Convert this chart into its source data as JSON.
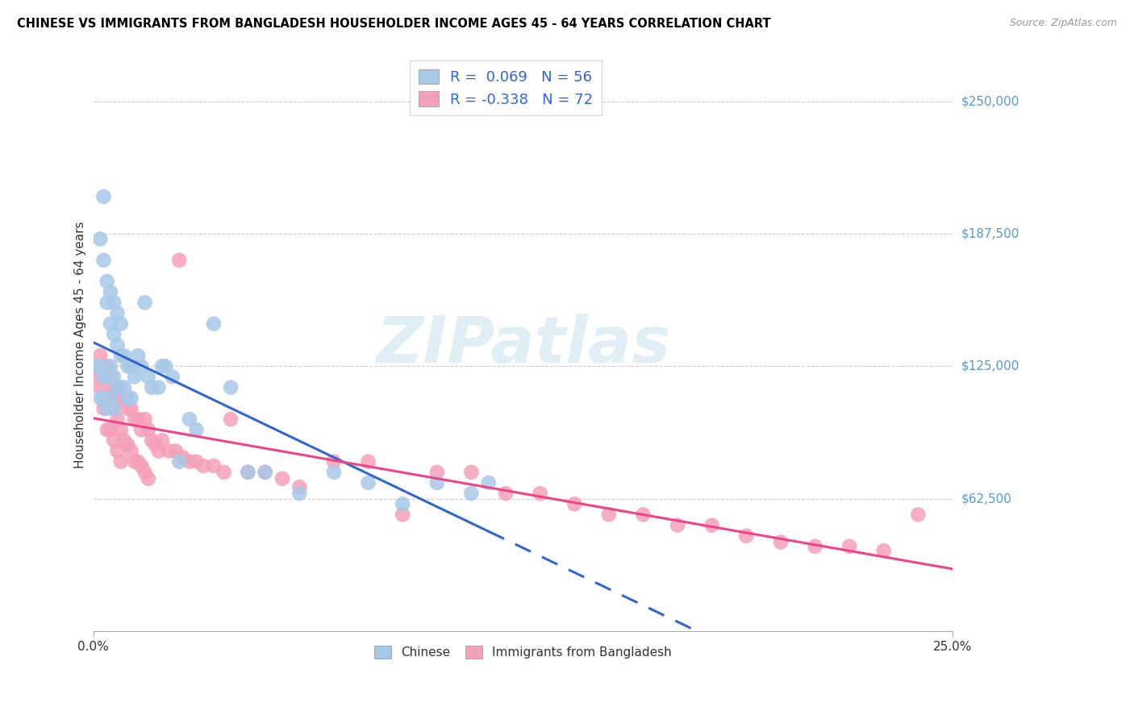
{
  "title": "CHINESE VS IMMIGRANTS FROM BANGLADESH HOUSEHOLDER INCOME AGES 45 - 64 YEARS CORRELATION CHART",
  "source": "Source: ZipAtlas.com",
  "ylabel": "Householder Income Ages 45 - 64 years",
  "ytick_labels": [
    "$62,500",
    "$125,000",
    "$187,500",
    "$250,000"
  ],
  "ytick_values": [
    62500,
    125000,
    187500,
    250000
  ],
  "ymin": 0,
  "ymax": 270000,
  "xmin": 0.0,
  "xmax": 0.25,
  "watermark": "ZIPatlas",
  "legend_blue_r": "0.069",
  "legend_blue_n": "56",
  "legend_pink_r": "-0.338",
  "legend_pink_n": "72",
  "chinese_color": "#a8c8e8",
  "bangladesh_color": "#f4a0b8",
  "chinese_line_color": "#3366cc",
  "bangladesh_line_color": "#ee4488",
  "chinese_scatter_x": [
    0.001,
    0.002,
    0.002,
    0.002,
    0.003,
    0.003,
    0.003,
    0.003,
    0.004,
    0.004,
    0.004,
    0.004,
    0.005,
    0.005,
    0.005,
    0.005,
    0.006,
    0.006,
    0.006,
    0.006,
    0.007,
    0.007,
    0.007,
    0.008,
    0.008,
    0.008,
    0.009,
    0.009,
    0.01,
    0.01,
    0.011,
    0.011,
    0.012,
    0.013,
    0.014,
    0.015,
    0.016,
    0.017,
    0.019,
    0.021,
    0.023,
    0.025,
    0.028,
    0.03,
    0.035,
    0.04,
    0.045,
    0.05,
    0.06,
    0.07,
    0.08,
    0.09,
    0.1,
    0.11,
    0.115,
    0.02
  ],
  "chinese_scatter_y": [
    125000,
    185000,
    125000,
    110000,
    205000,
    175000,
    120000,
    110000,
    165000,
    155000,
    120000,
    105000,
    160000,
    145000,
    125000,
    110000,
    155000,
    140000,
    120000,
    105000,
    150000,
    135000,
    115000,
    145000,
    130000,
    115000,
    130000,
    115000,
    125000,
    110000,
    125000,
    110000,
    120000,
    130000,
    125000,
    155000,
    120000,
    115000,
    115000,
    125000,
    120000,
    80000,
    100000,
    95000,
    145000,
    115000,
    75000,
    75000,
    65000,
    75000,
    70000,
    60000,
    70000,
    65000,
    70000,
    125000
  ],
  "bangladesh_scatter_x": [
    0.001,
    0.002,
    0.002,
    0.003,
    0.003,
    0.004,
    0.004,
    0.004,
    0.005,
    0.005,
    0.005,
    0.006,
    0.006,
    0.006,
    0.007,
    0.007,
    0.007,
    0.008,
    0.008,
    0.008,
    0.009,
    0.009,
    0.01,
    0.01,
    0.011,
    0.011,
    0.012,
    0.012,
    0.013,
    0.013,
    0.014,
    0.014,
    0.015,
    0.015,
    0.016,
    0.016,
    0.017,
    0.018,
    0.019,
    0.02,
    0.022,
    0.024,
    0.026,
    0.028,
    0.03,
    0.032,
    0.035,
    0.038,
    0.04,
    0.045,
    0.05,
    0.055,
    0.06,
    0.07,
    0.08,
    0.09,
    0.1,
    0.11,
    0.12,
    0.13,
    0.14,
    0.15,
    0.16,
    0.17,
    0.18,
    0.19,
    0.2,
    0.21,
    0.22,
    0.23,
    0.24,
    0.025
  ],
  "bangladesh_scatter_y": [
    120000,
    130000,
    115000,
    125000,
    105000,
    125000,
    110000,
    95000,
    120000,
    110000,
    95000,
    115000,
    105000,
    90000,
    115000,
    100000,
    85000,
    110000,
    95000,
    80000,
    110000,
    90000,
    105000,
    88000,
    105000,
    85000,
    100000,
    80000,
    100000,
    80000,
    95000,
    78000,
    100000,
    75000,
    95000,
    72000,
    90000,
    88000,
    85000,
    90000,
    85000,
    85000,
    82000,
    80000,
    80000,
    78000,
    78000,
    75000,
    100000,
    75000,
    75000,
    72000,
    68000,
    80000,
    80000,
    55000,
    75000,
    75000,
    65000,
    65000,
    60000,
    55000,
    55000,
    50000,
    50000,
    45000,
    42000,
    40000,
    40000,
    38000,
    55000,
    175000
  ]
}
